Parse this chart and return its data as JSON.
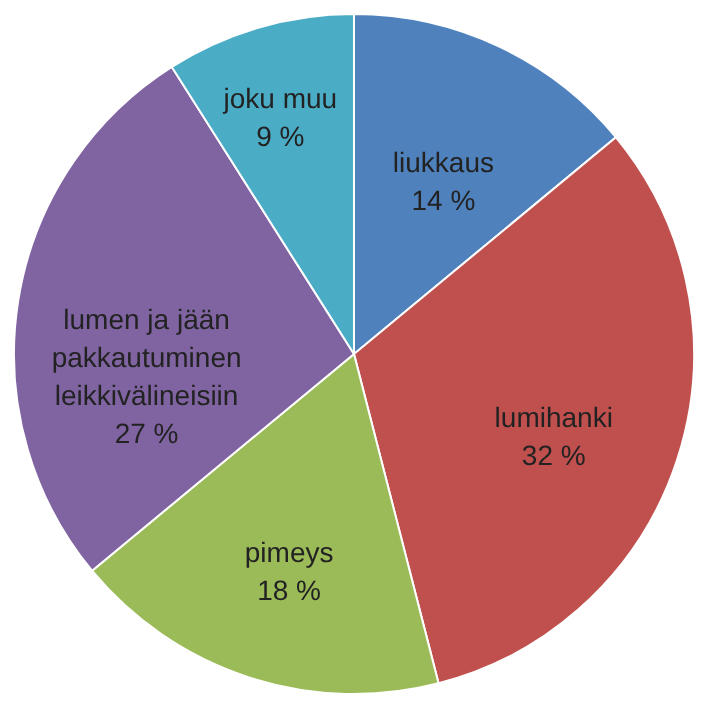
{
  "chart_data": {
    "type": "pie",
    "categories": [
      "liukkaus",
      "lumihanki",
      "pimeys",
      "lumen ja jään pakkautuminen leikkivälineisiin",
      "joku muu"
    ],
    "values": [
      14,
      32,
      18,
      27,
      9
    ],
    "value_labels": [
      "14 %",
      "32 %",
      "18 %",
      "27 %",
      "9 %"
    ],
    "colors": [
      "#4f81bd",
      "#c0504d",
      "#9bbb59",
      "#8064a2",
      "#4bacc6"
    ],
    "legend": false
  }
}
